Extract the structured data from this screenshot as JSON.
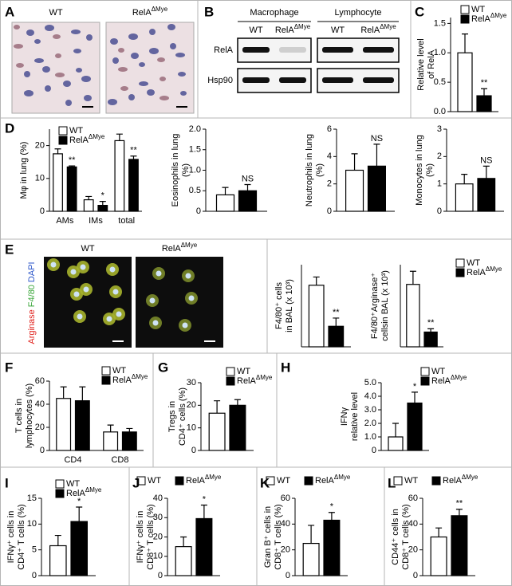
{
  "image_panels": {
    "A": {
      "panel": "A",
      "titles": [
        "WT",
        {
          "text": "RelA",
          "sup": "ΔMye"
        }
      ]
    },
    "B": {
      "panel": "B",
      "groups": [
        "Macrophage",
        "Lymphocyte"
      ],
      "lanes": [
        "WT",
        {
          "text": "RelA",
          "sup": "ΔMye"
        },
        "WT",
        {
          "text": "RelA",
          "sup": "ΔMye"
        }
      ],
      "rows": [
        "RelA",
        "Hsp90"
      ]
    },
    "E": {
      "panel": "E",
      "titles": [
        "WT",
        {
          "text": "RelA",
          "sup": "ΔMye"
        }
      ],
      "stains": [
        {
          "text": "Arginase",
          "color": "#e0201b"
        },
        {
          "text": "F4/80",
          "color": "#3aa63a"
        },
        {
          "text": "DAPI",
          "color": "#2b55c9"
        }
      ]
    }
  },
  "chart_data": [
    {
      "type": "bar",
      "panel": "C",
      "ylabel": [
        "Relative level",
        "of RelA"
      ],
      "categories": [
        null
      ],
      "ylim": [
        0,
        1.6
      ],
      "yticks": [
        {
          "value": 0,
          "label": "0.0"
        },
        0.5,
        {
          "value": 1,
          "label": "1.0"
        },
        1.5
      ],
      "legend": true,
      "series": [
        {
          "name": "WT",
          "color": "#ffffff",
          "values": [
            1.0
          ],
          "errors": [
            0.32
          ]
        },
        {
          "name": {
            "text": "RelA",
            "sup": "ΔMye"
          },
          "color": "#000000",
          "values": [
            0.27
          ],
          "errors": [
            0.12
          ],
          "sig": [
            "**"
          ]
        }
      ]
    },
    {
      "type": "bar",
      "panel": "D",
      "ylabel": [
        "Mφ in lung (%)"
      ],
      "categories": [
        "AMs",
        "IMs",
        "total"
      ],
      "ylim": [
        0,
        25
      ],
      "yticks": [
        0,
        10,
        20
      ],
      "legend": true,
      "series": [
        {
          "name": "WT",
          "color": "#ffffff",
          "values": [
            17.5,
            3.5,
            21.5
          ],
          "errors": [
            1.5,
            1.0,
            2.0
          ]
        },
        {
          "name": {
            "text": "RelA",
            "sup": "ΔMye"
          },
          "color": "#000000",
          "values": [
            13.5,
            1.8,
            15.8
          ],
          "errors": [
            0.3,
            1.2,
            1.0
          ],
          "sig": [
            "**",
            "*",
            "**"
          ]
        }
      ]
    },
    {
      "type": "bar",
      "ylabel": [
        "Eosinophils in lung",
        "(%)"
      ],
      "categories": [
        null
      ],
      "ylim": [
        0,
        2
      ],
      "yticks": [
        0,
        0.5,
        {
          "value": 1,
          "label": "1.0"
        },
        1.5,
        {
          "value": 2,
          "label": "2.0"
        }
      ],
      "legend": false,
      "series": [
        {
          "color": "#ffffff",
          "values": [
            0.4
          ],
          "errors": [
            0.18
          ]
        },
        {
          "color": "#000000",
          "values": [
            0.5
          ],
          "errors": [
            0.15
          ],
          "sig": [
            "NS"
          ]
        }
      ]
    },
    {
      "type": "bar",
      "ylabel": [
        "Neutrophils in lung",
        "(%)"
      ],
      "categories": [
        null
      ],
      "ylim": [
        0,
        6
      ],
      "yticks": [
        0,
        2,
        4,
        6
      ],
      "legend": false,
      "series": [
        {
          "color": "#ffffff",
          "values": [
            3.0
          ],
          "errors": [
            1.2
          ]
        },
        {
          "color": "#000000",
          "values": [
            3.3
          ],
          "errors": [
            1.6
          ],
          "sig": [
            "NS"
          ]
        }
      ]
    },
    {
      "type": "bar",
      "ylabel": [
        "Monocytes in lung",
        "(%)"
      ],
      "categories": [
        null
      ],
      "ylim": [
        0,
        3
      ],
      "yticks": [
        0,
        1,
        2,
        3
      ],
      "legend": false,
      "series": [
        {
          "color": "#ffffff",
          "values": [
            1.0
          ],
          "errors": [
            0.35
          ]
        },
        {
          "color": "#000000",
          "values": [
            1.2
          ],
          "errors": [
            0.45
          ],
          "sig": [
            "NS"
          ]
        }
      ]
    },
    {
      "type": "bar",
      "ylabel": [
        "F4/80⁺ cells",
        "in BAL (x 10³)"
      ],
      "categories": [
        null
      ],
      "ylim": [
        0,
        40
      ],
      "legend": false,
      "series": [
        {
          "color": "#ffffff",
          "values": [
            30
          ],
          "errors": [
            4
          ]
        },
        {
          "color": "#000000",
          "values": [
            10
          ],
          "errors": [
            4
          ],
          "sig": [
            "**"
          ]
        }
      ]
    },
    {
      "type": "bar",
      "ylabel": [
        "F4/80⁺Arginase⁺",
        "cellsin BAL (x 10³)"
      ],
      "categories": [
        null
      ],
      "ylim": [
        0,
        25
      ],
      "legend": true,
      "series": [
        {
          "name": "WT",
          "color": "#ffffff",
          "values": [
            19
          ],
          "errors": [
            4
          ]
        },
        {
          "name": {
            "text": "RelA",
            "sup": "ΔMye"
          },
          "color": "#000000",
          "values": [
            4.5
          ],
          "errors": [
            1
          ],
          "sig": [
            "**"
          ]
        }
      ]
    },
    {
      "type": "bar",
      "panel": "F",
      "ylabel": [
        "T cells in",
        "lymphocytes (%)"
      ],
      "categories": [
        "CD4",
        "CD8"
      ],
      "ylim": [
        0,
        60
      ],
      "yticks": [
        0,
        20,
        40,
        60
      ],
      "legend": true,
      "series": [
        {
          "name": "WT",
          "color": "#ffffff",
          "values": [
            45,
            16
          ],
          "errors": [
            10,
            6
          ]
        },
        {
          "name": {
            "text": "RelA",
            "sup": "ΔMye"
          },
          "color": "#000000",
          "values": [
            43,
            16
          ],
          "errors": [
            12,
            3
          ]
        }
      ]
    },
    {
      "type": "bar",
      "panel": "G",
      "ylabel": [
        "Tregs in",
        "CD4⁺ cells (%)"
      ],
      "categories": [
        null
      ],
      "ylim": [
        0,
        30
      ],
      "yticks": [
        0,
        10,
        20,
        30
      ],
      "legend": true,
      "series": [
        {
          "name": "WT",
          "color": "#ffffff",
          "values": [
            16.5
          ],
          "errors": [
            5.5
          ]
        },
        {
          "name": {
            "text": "RelA",
            "sup": "ΔMye"
          },
          "color": "#000000",
          "values": [
            20
          ],
          "errors": [
            2.5
          ]
        }
      ]
    },
    {
      "type": "bar",
      "panel": "H",
      "ylabel": [
        "IFNγ",
        "relative level"
      ],
      "categories": [
        null
      ],
      "ylim": [
        0,
        5
      ],
      "yticks": [
        0,
        {
          "value": 1,
          "label": "1.0"
        },
        {
          "value": 2,
          "label": "2.0"
        },
        {
          "value": 3,
          "label": "3.0"
        },
        {
          "value": 4,
          "label": "4.0"
        },
        {
          "value": 5,
          "label": "5.0"
        }
      ],
      "legend": true,
      "series": [
        {
          "name": "WT",
          "color": "#ffffff",
          "values": [
            1.0
          ],
          "errors": [
            1.0
          ]
        },
        {
          "name": {
            "text": "RelA",
            "sup": "ΔMye"
          },
          "color": "#000000",
          "values": [
            3.5
          ],
          "errors": [
            0.8
          ],
          "sig": [
            "*"
          ]
        }
      ]
    },
    {
      "type": "bar",
      "panel": "I",
      "ylabel": [
        "IFNγ⁺ cells in",
        "CD4⁺ T cells (%)"
      ],
      "categories": [
        null
      ],
      "ylim": [
        0,
        15
      ],
      "yticks": [
        0,
        5,
        10,
        15
      ],
      "legend": true,
      "series": [
        {
          "name": "WT",
          "color": "#ffffff",
          "values": [
            5.8
          ],
          "errors": [
            2
          ]
        },
        {
          "name": {
            "text": "RelA",
            "sup": "ΔMye"
          },
          "color": "#000000",
          "values": [
            10.5
          ],
          "errors": [
            2.8
          ],
          "sig": [
            "*"
          ]
        }
      ]
    },
    {
      "type": "bar",
      "panel": "J",
      "ylabel": [
        "IFNγ⁺ cells in",
        "CD8⁺ T cells (%)"
      ],
      "categories": [
        null
      ],
      "ylim": [
        0,
        40
      ],
      "yticks": [
        0,
        10,
        20,
        30,
        40
      ],
      "legend": true,
      "series": [
        {
          "name": "WT",
          "color": "#ffffff",
          "values": [
            15
          ],
          "errors": [
            5
          ]
        },
        {
          "name": {
            "text": "RelA",
            "sup": "ΔMye"
          },
          "color": "#000000",
          "values": [
            29.5
          ],
          "errors": [
            7
          ],
          "sig": [
            "*"
          ]
        }
      ]
    },
    {
      "type": "bar",
      "panel": "K",
      "ylabel": [
        "Gran B⁺ cells in",
        "CD8⁺ T cells (%)"
      ],
      "categories": [
        null
      ],
      "ylim": [
        0,
        60
      ],
      "yticks": [
        0,
        20,
        40,
        60
      ],
      "legend": true,
      "series": [
        {
          "name": "WT",
          "color": "#ffffff",
          "values": [
            25
          ],
          "errors": [
            14
          ]
        },
        {
          "name": {
            "text": "RelA",
            "sup": "ΔMye"
          },
          "color": "#000000",
          "values": [
            43
          ],
          "errors": [
            6
          ],
          "sig": [
            "*"
          ]
        }
      ]
    },
    {
      "type": "bar",
      "panel": "L",
      "ylabel": [
        "CD44⁺ cells in",
        "CD8⁺ T cells (%)"
      ],
      "categories": [
        null
      ],
      "ylim": [
        0,
        60
      ],
      "yticks": [
        0,
        20,
        40,
        60
      ],
      "legend": true,
      "series": [
        {
          "name": "WT",
          "color": "#ffffff",
          "values": [
            30
          ],
          "errors": [
            7
          ]
        },
        {
          "name": {
            "text": "RelA",
            "sup": "ΔMye"
          },
          "color": "#000000",
          "values": [
            46.5
          ],
          "errors": [
            5
          ],
          "sig": [
            "**"
          ]
        }
      ]
    }
  ]
}
